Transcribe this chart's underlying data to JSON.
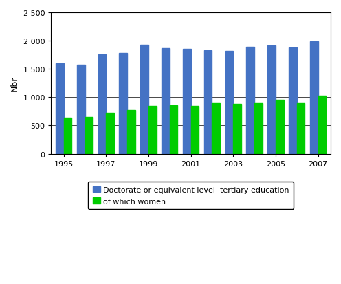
{
  "years": [
    1995,
    1996,
    1997,
    1998,
    1999,
    2000,
    2001,
    2002,
    2003,
    2004,
    2005,
    2006,
    2007
  ],
  "doctorate": [
    1600,
    1580,
    1760,
    1780,
    1930,
    1870,
    1850,
    1830,
    1820,
    1895,
    1920,
    1880,
    1985
  ],
  "women": [
    635,
    645,
    725,
    775,
    840,
    860,
    850,
    890,
    885,
    895,
    950,
    890,
    1030
  ],
  "bar_color_doctorate": "#4472c4",
  "bar_color_women": "#00cc00",
  "ylabel": "Nbr",
  "ylim": [
    0,
    2500
  ],
  "yticks": [
    0,
    500,
    1000,
    1500,
    2000,
    2500
  ],
  "ytick_labels": [
    "0",
    "500",
    "1 000",
    "1 500",
    "2 000",
    "2 500"
  ],
  "xtick_labels": [
    "1995",
    "1997",
    "1999",
    "2001",
    "2003",
    "2005",
    "2007"
  ],
  "legend_doctorate": "Doctorate or equivalent level  tertiary education",
  "legend_women": "of which women",
  "background_color": "#ffffff",
  "grid_color": "#000000",
  "border_color": "#000000"
}
